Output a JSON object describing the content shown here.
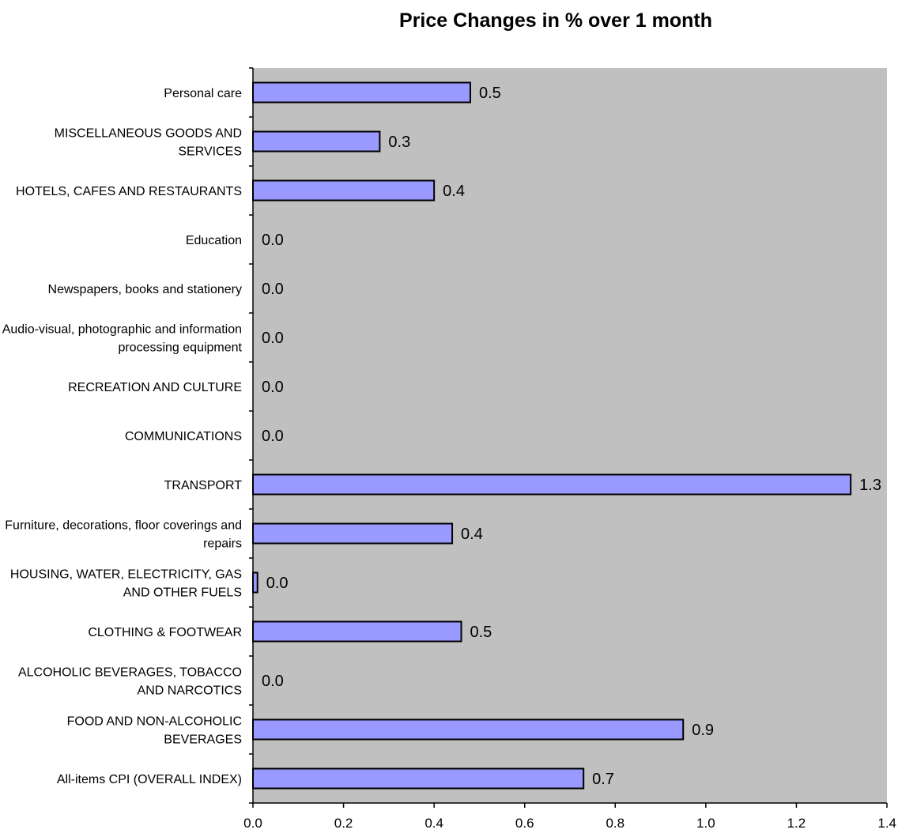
{
  "chart_data": {
    "type": "bar",
    "orientation": "horizontal",
    "title": "Price Changes in % over 1 month",
    "categories": [
      "Personal care",
      "MISCELLANEOUS GOODS AND SERVICES",
      "HOTELS, CAFES AND RESTAURANTS",
      "Education",
      "Newspapers, books and stationery",
      "Audio-visual, photographic and information processing equipment",
      "RECREATION AND CULTURE",
      "COMMUNICATIONS",
      "TRANSPORT",
      "Furniture, decorations, floor coverings and repairs",
      "HOUSING, WATER, ELECTRICITY, GAS AND OTHER FUELS",
      "CLOTHING & FOOTWEAR",
      "ALCOHOLIC BEVERAGES, TOBACCO AND NARCOTICS",
      "FOOD AND NON-ALCOHOLIC BEVERAGES",
      "All-items CPI (OVERALL INDEX)"
    ],
    "category_lines": [
      [
        "Personal care"
      ],
      [
        "MISCELLANEOUS GOODS AND",
        "SERVICES"
      ],
      [
        "HOTELS, CAFES AND RESTAURANTS"
      ],
      [
        "Education"
      ],
      [
        "Newspapers, books and stationery"
      ],
      [
        "Audio-visual, photographic and information",
        "processing equipment"
      ],
      [
        "RECREATION AND CULTURE"
      ],
      [
        "COMMUNICATIONS"
      ],
      [
        "TRANSPORT"
      ],
      [
        "Furniture, decorations, floor coverings and",
        "repairs"
      ],
      [
        "HOUSING, WATER, ELECTRICITY, GAS",
        "AND OTHER FUELS"
      ],
      [
        "CLOTHING & FOOTWEAR"
      ],
      [
        "ALCOHOLIC BEVERAGES, TOBACCO",
        "AND NARCOTICS"
      ],
      [
        "FOOD AND NON-ALCOHOLIC",
        "BEVERAGES"
      ],
      [
        "All-items CPI (OVERALL INDEX)"
      ]
    ],
    "values": [
      0.48,
      0.28,
      0.4,
      0.0,
      0.0,
      0.0,
      0.0,
      0.0,
      1.32,
      0.44,
      0.01,
      0.46,
      0.0,
      0.95,
      0.73
    ],
    "value_labels": [
      "0.5",
      "0.3",
      "0.4",
      "0.0",
      "0.0",
      "0.0",
      "0.0",
      "0.0",
      "1.3",
      "0.4",
      "0.0",
      "0.5",
      "0.0",
      "0.9",
      "0.7"
    ],
    "xlim": [
      0,
      1.4
    ],
    "x_ticks": [
      "0.0",
      "0.2",
      "0.4",
      "0.6",
      "0.8",
      "1.0",
      "1.2",
      "1.4"
    ],
    "xlabel": "",
    "ylabel": "",
    "grid": false,
    "legend": "none",
    "colors": {
      "bar_fill": "#9999ff",
      "bar_stroke": "#000000",
      "plot_background": "#c0c0c0"
    }
  }
}
